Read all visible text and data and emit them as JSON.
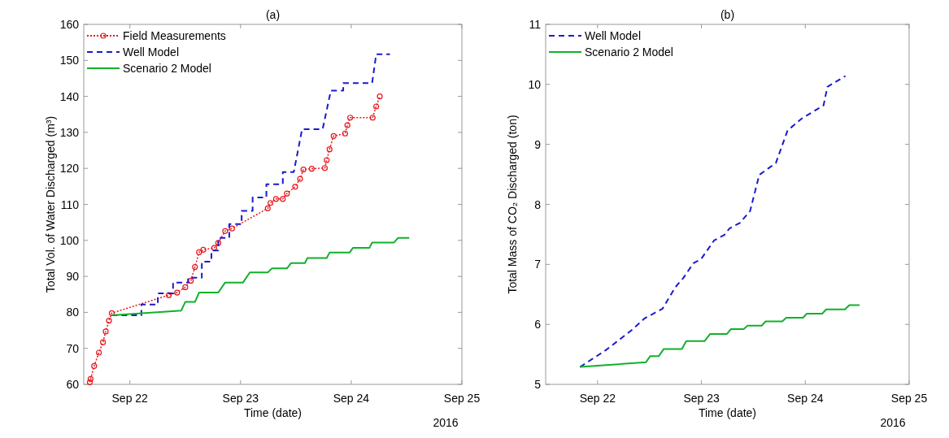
{
  "chart_data": [
    {
      "type": "line",
      "title": "(a)",
      "xlabel": "Time (date)",
      "ylabel": "Total Vol. of Water Discharged (m³)",
      "annotations": [
        "2016"
      ],
      "xlim": [
        "2016-09-21T14:00",
        "2016-09-25"
      ],
      "xticks": [
        {
          "value": "2016-09-22",
          "label": "Sep 22"
        },
        {
          "value": "2016-09-23",
          "label": "Sep 23"
        },
        {
          "value": "2016-09-24",
          "label": "Sep 24"
        },
        {
          "value": "2016-09-25",
          "label": "Sep 25"
        }
      ],
      "ylim": [
        60,
        160
      ],
      "yticks": [
        60,
        70,
        80,
        90,
        100,
        110,
        120,
        130,
        140,
        150,
        160
      ],
      "legend": "top left",
      "series": [
        {
          "name": "Field Measurements",
          "color": "#e8161b",
          "line_style": "dotted",
          "marker": "circle",
          "x": [
            "2016-09-21T15:19",
            "2016-09-21T15:29",
            "2016-09-21T16:15",
            "2016-09-21T17:17",
            "2016-09-21T18:10",
            "2016-09-21T18:46",
            "2016-09-21T19:28",
            "2016-09-21T20:04",
            "2016-09-22T08:27",
            "2016-09-22T10:15",
            "2016-09-22T12:01",
            "2016-09-22T13:13",
            "2016-09-22T14:07",
            "2016-09-22T15:00",
            "2016-09-22T15:55",
            "2016-09-22T18:17",
            "2016-09-22T19:10",
            "2016-09-22T20:40",
            "2016-09-22T22:09",
            "2016-09-23T05:54",
            "2016-09-23T06:29",
            "2016-09-23T07:41",
            "2016-09-23T09:10",
            "2016-09-23T10:03",
            "2016-09-23T11:51",
            "2016-09-23T12:55",
            "2016-09-23T13:38",
            "2016-09-23T15:26",
            "2016-09-23T18:17",
            "2016-09-23T18:41",
            "2016-09-23T19:18",
            "2016-09-23T20:11",
            "2016-09-23T22:41",
            "2016-09-23T23:10",
            "2016-09-23T23:46",
            "2016-09-24T04:39",
            "2016-09-24T05:25",
            "2016-09-24T06:12"
          ],
          "values": [
            60.6,
            61.5,
            65.1,
            68.8,
            71.7,
            74.7,
            77.7,
            79.8,
            84.8,
            85.5,
            87,
            88.8,
            92.6,
            96.7,
            97.4,
            97.9,
            99.3,
            102.6,
            103.3,
            108.9,
            110.4,
            111.5,
            111.5,
            113,
            114.9,
            117.1,
            119.7,
            119.9,
            120.1,
            122.3,
            125.3,
            129,
            129.7,
            132,
            134.1,
            134.1,
            137.2,
            140
          ]
        },
        {
          "name": "Well Model",
          "color": "#1a1ad0",
          "line_style": "dashed",
          "x": [
            "2016-09-21T20:04",
            "2016-09-22T02:30",
            "2016-09-22T02:30",
            "2016-09-22T06:04",
            "2016-09-22T06:04",
            "2016-09-22T09:22",
            "2016-09-22T09:22",
            "2016-09-22T12:37",
            "2016-09-22T12:37",
            "2016-09-22T15:36",
            "2016-09-22T15:36",
            "2016-09-22T17:41",
            "2016-09-22T17:41",
            "2016-09-22T19:10",
            "2016-09-22T19:10",
            "2016-09-22T21:33",
            "2016-09-22T21:33",
            "2016-09-23T00:14",
            "2016-09-23T00:14",
            "2016-09-23T02:37",
            "2016-09-23T02:37",
            "2016-09-23T05:36",
            "2016-09-23T05:36",
            "2016-09-23T09:10",
            "2016-09-23T09:10",
            "2016-09-23T11:33",
            "2016-09-23T13:21",
            "2016-09-23T17:48",
            "2016-09-23T19:35",
            "2016-09-23T22:16",
            "2016-09-23T22:16",
            "2016-09-24T04:32",
            "2016-09-24T05:25",
            "2016-09-24T08:24"
          ],
          "values": [
            79.2,
            79.2,
            82.2,
            82.2,
            85.3,
            85.3,
            88.3,
            88.3,
            89.6,
            89.6,
            94.1,
            94.1,
            97.2,
            97.2,
            100.7,
            100.7,
            104.5,
            104.5,
            108.2,
            108.2,
            111.9,
            111.9,
            115.6,
            115.6,
            119,
            119,
            130.9,
            130.9,
            141.6,
            141.6,
            143.7,
            143.7,
            151.7,
            151.7
          ]
        },
        {
          "name": "Scenario 2 Model",
          "color": "#12b02a",
          "line_style": "solid",
          "x": [
            "2016-09-21T20:04",
            "2016-09-22T11:08",
            "2016-09-22T12:01",
            "2016-09-22T14:07",
            "2016-09-22T15:00",
            "2016-09-22T19:10",
            "2016-09-22T20:40",
            "2016-09-23T00:32",
            "2016-09-23T02:01",
            "2016-09-23T05:54",
            "2016-09-23T06:48",
            "2016-09-23T10:03",
            "2016-09-23T10:58",
            "2016-09-23T13:57",
            "2016-09-23T14:31",
            "2016-09-23T18:41",
            "2016-09-23T19:18",
            "2016-09-23T23:38",
            "2016-09-24T00:22",
            "2016-09-24T03:56",
            "2016-09-24T04:32",
            "2016-09-24T09:17",
            "2016-09-24T10:11",
            "2016-09-24T12:35"
          ],
          "values": [
            79.2,
            80.5,
            82.9,
            82.9,
            85.5,
            85.5,
            88.3,
            88.3,
            91.1,
            91.1,
            92.2,
            92.2,
            93.7,
            93.7,
            95.1,
            95.1,
            96.6,
            96.6,
            97.9,
            97.9,
            99.4,
            99.4,
            100.7,
            100.7
          ]
        }
      ]
    },
    {
      "type": "line",
      "title": "(b)",
      "xlabel": "Time (date)",
      "ylabel": "Total Mass of CO₂ Discharged (ton)",
      "annotations": [
        "2016"
      ],
      "xlim": [
        "2016-09-21T12:00",
        "2016-09-25"
      ],
      "xticks": [
        {
          "value": "2016-09-22",
          "label": "Sep 22"
        },
        {
          "value": "2016-09-23",
          "label": "Sep 23"
        },
        {
          "value": "2016-09-24",
          "label": "Sep 24"
        },
        {
          "value": "2016-09-25",
          "label": "Sep 25"
        }
      ],
      "ylim": [
        5,
        11
      ],
      "yticks": [
        5,
        6,
        7,
        8,
        9,
        10,
        11
      ],
      "legend": "top left",
      "series": [
        {
          "name": "Well Model",
          "color": "#1a1ad0",
          "line_style": "dashed",
          "x": [
            "2016-09-21T19:57",
            "2016-09-22T01:54",
            "2016-09-22T07:49",
            "2016-09-22T10:51",
            "2016-09-22T15:00",
            "2016-09-22T17:58",
            "2016-09-22T19:47",
            "2016-09-22T22:09",
            "2016-09-22T23:57",
            "2016-09-23T02:56",
            "2016-09-23T05:18",
            "2016-09-23T06:29",
            "2016-09-23T08:53",
            "2016-09-23T11:15",
            "2016-09-23T13:21",
            "2016-09-23T17:12",
            "2016-09-23T19:54",
            "2016-09-23T23:10",
            "2016-09-24T04:13",
            "2016-09-24T05:07",
            "2016-09-24T09:17"
          ],
          "values": [
            5.29,
            5.57,
            5.9,
            6.1,
            6.26,
            6.62,
            6.77,
            7.02,
            7.09,
            7.4,
            7.49,
            7.6,
            7.69,
            7.89,
            8.49,
            8.69,
            9.23,
            9.43,
            9.65,
            9.96,
            10.14
          ]
        },
        {
          "name": "Scenario 2 Model",
          "color": "#12b02a",
          "line_style": "solid",
          "x": [
            "2016-09-21T19:57",
            "2016-09-22T11:12",
            "2016-09-22T12:09",
            "2016-09-22T14:07",
            "2016-09-22T15:19",
            "2016-09-22T19:28",
            "2016-09-22T20:30",
            "2016-09-23T00:43",
            "2016-09-23T02:01",
            "2016-09-23T05:54",
            "2016-09-23T06:48",
            "2016-09-23T09:46",
            "2016-09-23T10:39",
            "2016-09-23T13:57",
            "2016-09-23T14:50",
            "2016-09-23T18:41",
            "2016-09-23T19:35",
            "2016-09-23T23:28",
            "2016-09-24T00:22",
            "2016-09-24T03:56",
            "2016-09-24T04:49",
            "2016-09-24T09:10",
            "2016-09-24T10:11",
            "2016-09-24T12:33"
          ],
          "values": [
            5.29,
            5.37,
            5.47,
            5.47,
            5.59,
            5.59,
            5.72,
            5.72,
            5.84,
            5.84,
            5.92,
            5.92,
            5.98,
            5.98,
            6.05,
            6.05,
            6.11,
            6.11,
            6.18,
            6.18,
            6.25,
            6.25,
            6.32,
            6.32
          ]
        }
      ]
    }
  ]
}
